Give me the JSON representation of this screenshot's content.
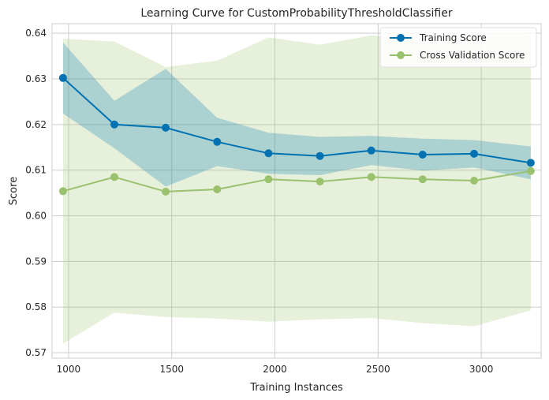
{
  "chart_data": {
    "type": "line",
    "title": "Learning Curve for CustomProbabilityThresholdClassifier",
    "xlabel": "Training Instances",
    "ylabel": "Score",
    "xlim": [
      920,
      3290
    ],
    "ylim": [
      0.5688,
      0.6421
    ],
    "xticks": [
      1000,
      1500,
      2000,
      2500,
      3000
    ],
    "yticks": [
      0.57,
      0.58,
      0.59,
      0.6,
      0.61,
      0.62,
      0.63,
      0.64
    ],
    "grid": true,
    "legend_position": "top-right",
    "x": [
      973,
      1222,
      1471,
      1720,
      1969,
      2218,
      2467,
      2716,
      2965,
      3240
    ],
    "series": [
      {
        "name": "Training Score",
        "color": "#0072b2",
        "values": [
          0.6302,
          0.62,
          0.6193,
          0.6162,
          0.6137,
          0.6131,
          0.6143,
          0.6134,
          0.6136,
          0.6116
        ],
        "band_upper": [
          0.638,
          0.6252,
          0.6322,
          0.6215,
          0.6182,
          0.6173,
          0.6175,
          0.6169,
          0.6166,
          0.6152
        ],
        "band_lower": [
          0.6224,
          0.6148,
          0.6064,
          0.6109,
          0.6092,
          0.6089,
          0.6111,
          0.6099,
          0.6106,
          0.608
        ]
      },
      {
        "name": "Cross Validation Score",
        "color": "#9ac26e",
        "values": [
          0.6054,
          0.6085,
          0.6053,
          0.6058,
          0.608,
          0.6075,
          0.6085,
          0.608,
          0.6077,
          0.6098
        ],
        "band_upper": [
          0.6388,
          0.6382,
          0.6326,
          0.634,
          0.6391,
          0.6375,
          0.6395,
          0.6385,
          0.64,
          0.6402
        ],
        "band_lower": [
          0.572,
          0.5788,
          0.5778,
          0.5775,
          0.5768,
          0.5773,
          0.5776,
          0.5765,
          0.5758,
          0.5793
        ]
      }
    ]
  }
}
